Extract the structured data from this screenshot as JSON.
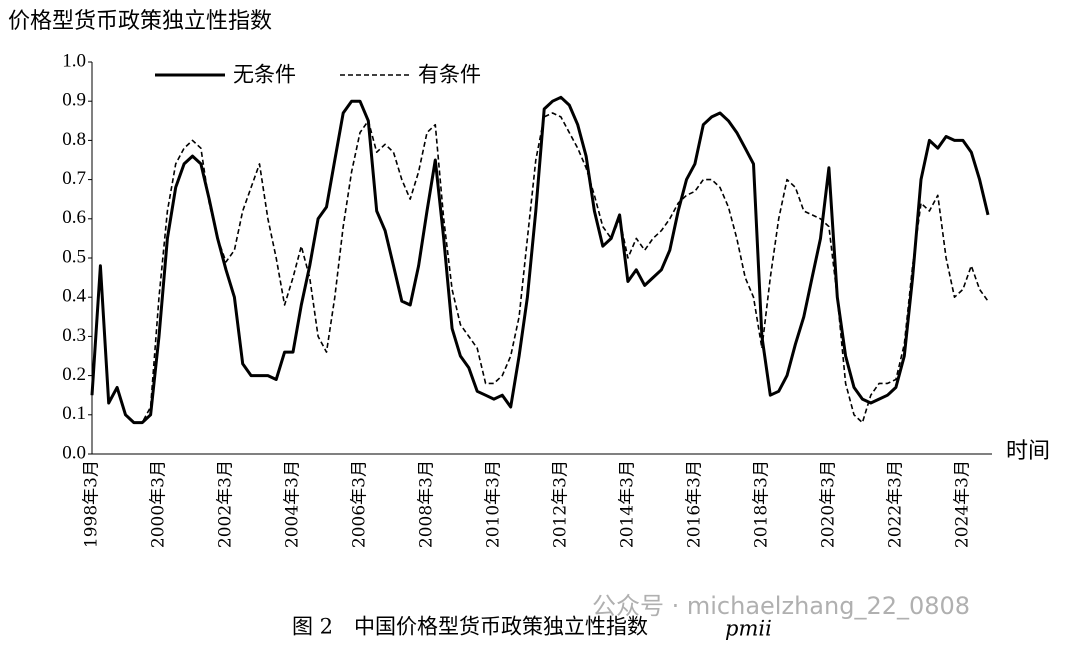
{
  "chart_data": {
    "type": "line",
    "title": "价格型货币政策独立性指数",
    "x_label": "时间",
    "caption": "图 2　中国价格型货币政策独立性指数",
    "caption_italic": "pmii",
    "watermark": "公众号 · michaelzhang_22_0808",
    "categories": [
      "1998年3月",
      null,
      null,
      null,
      null,
      null,
      null,
      null,
      "2000年3月",
      null,
      null,
      null,
      null,
      null,
      null,
      null,
      "2002年3月",
      null,
      null,
      null,
      null,
      null,
      null,
      null,
      "2004年3月",
      null,
      null,
      null,
      null,
      null,
      null,
      null,
      "2006年3月",
      null,
      null,
      null,
      null,
      null,
      null,
      null,
      "2008年3月",
      null,
      null,
      null,
      null,
      null,
      null,
      null,
      "2010年3月",
      null,
      null,
      null,
      null,
      null,
      null,
      null,
      "2012年3月",
      null,
      null,
      null,
      null,
      null,
      null,
      null,
      "2014年3月",
      null,
      null,
      null,
      null,
      null,
      null,
      null,
      "2016年3月",
      null,
      null,
      null,
      null,
      null,
      null,
      null,
      "2018年3月",
      null,
      null,
      null,
      null,
      null,
      null,
      null,
      "2020年3月",
      null,
      null,
      null,
      null,
      null,
      null,
      null,
      "2022年3月",
      null,
      null,
      null,
      null,
      null,
      null,
      null,
      "2024年3月",
      null,
      null,
      null
    ],
    "series": [
      {
        "name": "无条件",
        "color": "#000000",
        "dash": false,
        "values": [
          0.15,
          0.48,
          0.13,
          0.17,
          0.1,
          0.08,
          0.08,
          0.1,
          0.3,
          0.55,
          0.68,
          0.74,
          0.76,
          0.74,
          0.65,
          0.55,
          0.47,
          0.4,
          0.23,
          0.2,
          0.2,
          0.2,
          0.19,
          0.26,
          0.26,
          0.38,
          0.48,
          0.6,
          0.63,
          0.75,
          0.87,
          0.9,
          0.9,
          0.85,
          0.62,
          0.57,
          0.48,
          0.39,
          0.38,
          0.48,
          0.62,
          0.75,
          0.55,
          0.32,
          0.25,
          0.22,
          0.16,
          0.15,
          0.14,
          0.15,
          0.12,
          0.25,
          0.4,
          0.62,
          0.88,
          0.9,
          0.91,
          0.89,
          0.84,
          0.76,
          0.62,
          0.53,
          0.55,
          0.61,
          0.44,
          0.47,
          0.43,
          0.45,
          0.47,
          0.52,
          0.62,
          0.7,
          0.74,
          0.84,
          0.86,
          0.87,
          0.85,
          0.82,
          0.78,
          0.74,
          0.3,
          0.15,
          0.16,
          0.2,
          0.28,
          0.35,
          0.45,
          0.55,
          0.73,
          0.4,
          0.25,
          0.17,
          0.14,
          0.13,
          0.14,
          0.15,
          0.17,
          0.25,
          0.45,
          0.7,
          0.8,
          0.78,
          0.81,
          0.8,
          0.8,
          0.77,
          0.7,
          0.61
        ]
      },
      {
        "name": "有条件",
        "color": "#000000",
        "dash": true,
        "values": [
          0.15,
          0.48,
          0.13,
          0.17,
          0.1,
          0.08,
          0.08,
          0.12,
          0.4,
          0.62,
          0.74,
          0.78,
          0.8,
          0.78,
          0.64,
          0.55,
          0.49,
          0.52,
          0.62,
          0.68,
          0.74,
          0.6,
          0.5,
          0.38,
          0.45,
          0.53,
          0.45,
          0.3,
          0.26,
          0.4,
          0.58,
          0.72,
          0.82,
          0.85,
          0.77,
          0.79,
          0.77,
          0.7,
          0.65,
          0.72,
          0.82,
          0.84,
          0.6,
          0.42,
          0.33,
          0.3,
          0.27,
          0.18,
          0.18,
          0.2,
          0.25,
          0.35,
          0.55,
          0.75,
          0.86,
          0.87,
          0.86,
          0.82,
          0.78,
          0.73,
          0.66,
          0.58,
          0.55,
          0.6,
          0.5,
          0.55,
          0.52,
          0.55,
          0.57,
          0.6,
          0.64,
          0.66,
          0.67,
          0.7,
          0.7,
          0.68,
          0.63,
          0.55,
          0.45,
          0.4,
          0.27,
          0.45,
          0.6,
          0.7,
          0.68,
          0.62,
          0.61,
          0.6,
          0.58,
          0.4,
          0.18,
          0.1,
          0.08,
          0.15,
          0.18,
          0.18,
          0.19,
          0.28,
          0.48,
          0.64,
          0.62,
          0.66,
          0.5,
          0.4,
          0.42,
          0.48,
          0.42,
          0.39
        ]
      }
    ],
    "ylim": [
      0,
      1
    ],
    "yticks": [
      {
        "value": 0,
        "label": "0.0"
      },
      0.1,
      0.2,
      0.3,
      0.4,
      0.5,
      0.6,
      0.7,
      0.8,
      0.9,
      {
        "value": 1,
        "label": "1.0"
      }
    ]
  }
}
